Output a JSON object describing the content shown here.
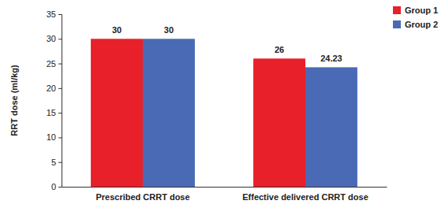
{
  "chart_data": {
    "type": "bar",
    "y_label": "RRT dose (ml/kg)",
    "categories": [
      "Prescribed CRRT dose",
      "Effective delivered CRRT dose"
    ],
    "series": [
      {
        "name": "Group 1",
        "color": "#e8202a",
        "values": [
          30,
          26
        ]
      },
      {
        "name": "Group 2",
        "color": "#4a6ab5",
        "values": [
          30,
          24.23
        ]
      }
    ],
    "ylim": [
      0,
      35
    ],
    "yticks": [
      0,
      5,
      10,
      15,
      20,
      25,
      30,
      35
    ],
    "grid": false,
    "legend": "upper right",
    "data_labels": true
  }
}
